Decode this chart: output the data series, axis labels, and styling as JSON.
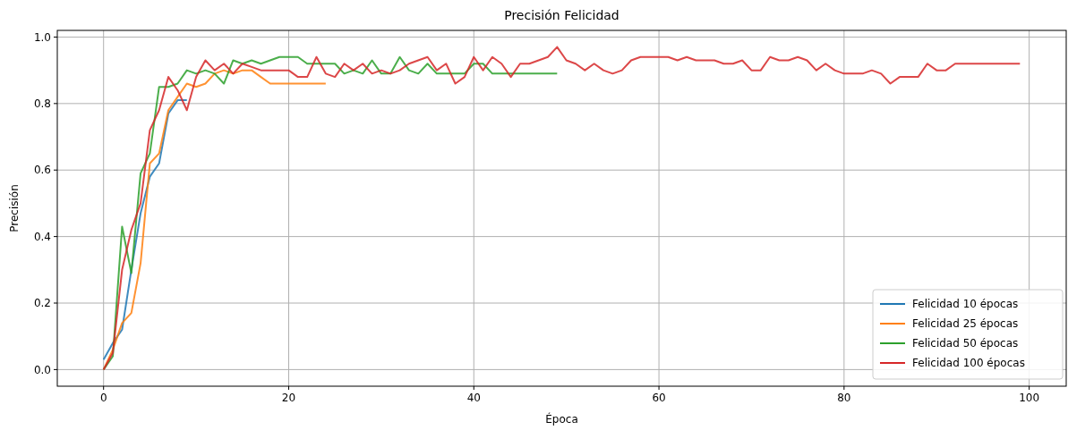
{
  "chart_data": {
    "type": "line",
    "title": "Precisión Felicidad",
    "xlabel": "Época",
    "ylabel": "Precisión",
    "xlim": [
      -5,
      104
    ],
    "ylim": [
      -0.05,
      1.02
    ],
    "xticks": [
      0,
      20,
      40,
      60,
      80,
      100
    ],
    "yticks": [
      {
        "value": 0,
        "label": "0.0"
      },
      {
        "value": 0.2,
        "label": "0.2"
      },
      {
        "value": 0.4,
        "label": "0.4"
      },
      {
        "value": 0.6,
        "label": "0.6"
      },
      {
        "value": 0.8,
        "label": "0.8"
      },
      {
        "value": 1,
        "label": "1.0"
      }
    ],
    "grid": true,
    "legend": "bottom right",
    "series": [
      {
        "name": "Felicidad 10 épocas",
        "color": "#1f77b4",
        "x": [
          0,
          1,
          2,
          3,
          4,
          5,
          6,
          7,
          8,
          9
        ],
        "values": [
          0.03,
          0.08,
          0.12,
          0.3,
          0.47,
          0.58,
          0.62,
          0.77,
          0.81,
          0.81
        ]
      },
      {
        "name": "Felicidad 25 épocas",
        "color": "#ff7f0e",
        "x": [
          0,
          1,
          2,
          3,
          4,
          5,
          6,
          7,
          8,
          9,
          10,
          11,
          12,
          13,
          14,
          15,
          16,
          17,
          18,
          19,
          20,
          21,
          22,
          23,
          24
        ],
        "values": [
          0.0,
          0.06,
          0.14,
          0.17,
          0.32,
          0.62,
          0.65,
          0.78,
          0.82,
          0.86,
          0.85,
          0.86,
          0.89,
          0.9,
          0.89,
          0.9,
          0.9,
          0.88,
          0.86,
          0.86,
          0.86,
          0.86,
          0.86,
          0.86,
          0.86
        ]
      },
      {
        "name": "Felicidad 50 épocas",
        "color": "#2ca02c",
        "x": [
          0,
          1,
          2,
          3,
          4,
          5,
          6,
          7,
          8,
          9,
          10,
          11,
          12,
          13,
          14,
          15,
          16,
          17,
          18,
          19,
          20,
          21,
          22,
          23,
          24,
          25,
          26,
          27,
          28,
          29,
          30,
          31,
          32,
          33,
          34,
          35,
          36,
          37,
          38,
          39,
          40,
          41,
          42,
          43,
          44,
          45,
          46,
          47,
          48,
          49
        ],
        "values": [
          0.0,
          0.04,
          0.43,
          0.29,
          0.59,
          0.65,
          0.85,
          0.85,
          0.86,
          0.9,
          0.89,
          0.9,
          0.89,
          0.86,
          0.93,
          0.92,
          0.93,
          0.92,
          0.93,
          0.94,
          0.94,
          0.94,
          0.92,
          0.92,
          0.92,
          0.92,
          0.89,
          0.9,
          0.89,
          0.93,
          0.89,
          0.89,
          0.94,
          0.9,
          0.89,
          0.92,
          0.89,
          0.89,
          0.89,
          0.89,
          0.92,
          0.92,
          0.89,
          0.89,
          0.89,
          0.89,
          0.89,
          0.89,
          0.89,
          0.89
        ]
      },
      {
        "name": "Felicidad 100 épocas",
        "color": "#d62728",
        "x": [
          0,
          1,
          2,
          3,
          4,
          5,
          6,
          7,
          8,
          9,
          10,
          11,
          12,
          13,
          14,
          15,
          16,
          17,
          18,
          19,
          20,
          21,
          22,
          23,
          24,
          25,
          26,
          27,
          28,
          29,
          30,
          31,
          32,
          33,
          34,
          35,
          36,
          37,
          38,
          39,
          40,
          41,
          42,
          43,
          44,
          45,
          46,
          47,
          48,
          49,
          50,
          51,
          52,
          53,
          54,
          55,
          56,
          57,
          58,
          59,
          60,
          61,
          62,
          63,
          64,
          65,
          66,
          67,
          68,
          69,
          70,
          71,
          72,
          73,
          74,
          75,
          76,
          77,
          78,
          79,
          80,
          81,
          82,
          83,
          84,
          85,
          86,
          87,
          88,
          89,
          90,
          91,
          92,
          93,
          94,
          95,
          96,
          97,
          98,
          99
        ],
        "values": [
          0.0,
          0.05,
          0.3,
          0.42,
          0.5,
          0.72,
          0.78,
          0.88,
          0.84,
          0.78,
          0.88,
          0.93,
          0.9,
          0.92,
          0.89,
          0.92,
          0.91,
          0.9,
          0.9,
          0.9,
          0.9,
          0.88,
          0.88,
          0.94,
          0.89,
          0.88,
          0.92,
          0.9,
          0.92,
          0.89,
          0.9,
          0.89,
          0.9,
          0.92,
          0.93,
          0.94,
          0.9,
          0.92,
          0.86,
          0.88,
          0.94,
          0.9,
          0.94,
          0.92,
          0.88,
          0.92,
          0.92,
          0.93,
          0.94,
          0.97,
          0.93,
          0.92,
          0.9,
          0.92,
          0.9,
          0.89,
          0.9,
          0.93,
          0.94,
          0.94,
          0.94,
          0.94,
          0.93,
          0.94,
          0.93,
          0.93,
          0.93,
          0.92,
          0.92,
          0.93,
          0.9,
          0.9,
          0.94,
          0.93,
          0.93,
          0.94,
          0.93,
          0.9,
          0.92,
          0.9,
          0.89,
          0.89,
          0.89,
          0.9,
          0.89,
          0.86,
          0.88,
          0.88,
          0.88,
          0.92,
          0.9,
          0.9,
          0.92,
          0.92,
          0.92,
          0.92,
          0.92,
          0.92,
          0.92,
          0.92
        ]
      }
    ]
  }
}
